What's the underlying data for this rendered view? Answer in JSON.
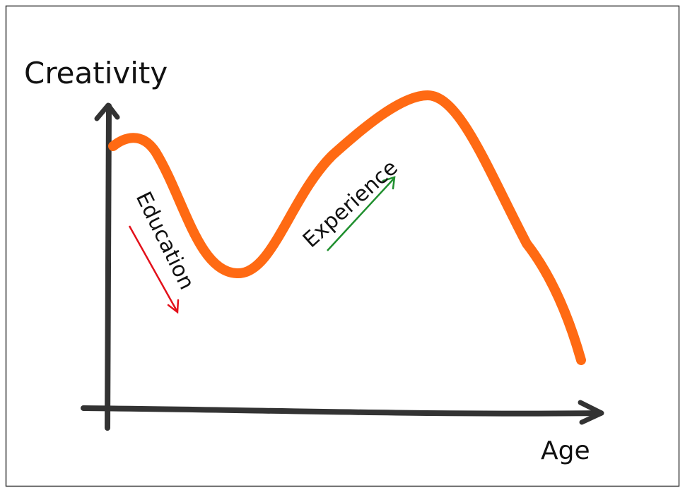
{
  "diagram": {
    "y_axis_label": "Creativity",
    "x_axis_label": "Age",
    "annotations": [
      {
        "label": "Education"
      },
      {
        "label": "Experience"
      }
    ]
  }
}
